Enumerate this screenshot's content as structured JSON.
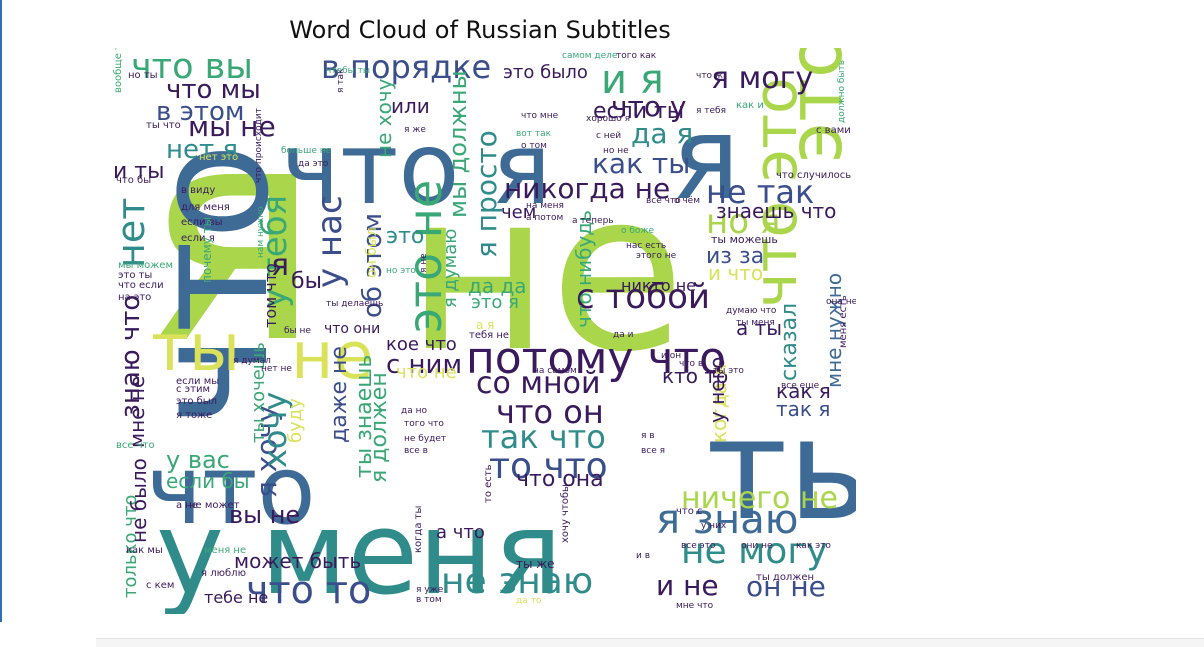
{
  "chart_data": {
    "type": "wordcloud",
    "title": "Word Cloud of Russian Subtitles",
    "colors": {
      "dark": "#3a1a5c",
      "indigo": "#3b4e8c",
      "blue": "#3e6a96",
      "teal": "#2f8c8a",
      "green": "#3aa876",
      "lime": "#a9d64b",
      "yellow": "#d9e25a"
    },
    "words": [
      {
        "text": "я",
        "c": "lime"
      },
      {
        "text": "не",
        "c": "lime"
      },
      {
        "text": "что",
        "c": "blue"
      },
      {
        "text": "ты",
        "c": "blue"
      },
      {
        "text": "у меня",
        "c": "teal"
      },
      {
        "text": "что я",
        "c": "blue"
      },
      {
        "text": "я",
        "c": "blue"
      },
      {
        "text": "что",
        "c": "blue"
      },
      {
        "text": "это",
        "c": "lime"
      },
      {
        "text": "что это",
        "c": "lime"
      },
      {
        "text": "ты",
        "c": "yellow"
      },
      {
        "text": "не",
        "c": "yellow"
      },
      {
        "text": "что вы",
        "c": "green"
      },
      {
        "text": "в порядке",
        "c": "indigo"
      },
      {
        "text": "и я",
        "c": "green"
      },
      {
        "text": "я могу",
        "c": "dark"
      },
      {
        "text": "что мы",
        "c": "dark"
      },
      {
        "text": "что у",
        "c": "dark"
      },
      {
        "text": "в этом",
        "c": "indigo"
      },
      {
        "text": "если ты",
        "c": "dark"
      },
      {
        "text": "мы не",
        "c": "dark"
      },
      {
        "text": "да я",
        "c": "teal"
      },
      {
        "text": "нет я",
        "c": "teal"
      },
      {
        "text": "как ты",
        "c": "indigo"
      },
      {
        "text": "нет",
        "c": "teal"
      },
      {
        "text": "и ты",
        "c": "dark"
      },
      {
        "text": "никогда не",
        "c": "dark"
      },
      {
        "text": "не так",
        "c": "indigo"
      },
      {
        "text": "у тебя",
        "c": "green"
      },
      {
        "text": "у нас",
        "c": "indigo"
      },
      {
        "text": "но я",
        "c": "lime"
      },
      {
        "text": "знаешь что",
        "c": "dark"
      },
      {
        "text": "это не",
        "c": "green"
      },
      {
        "text": "об этом",
        "c": "indigo"
      },
      {
        "text": "я просто",
        "c": "teal"
      },
      {
        "text": "мы должны",
        "c": "green"
      },
      {
        "text": "не хочу",
        "c": "green"
      },
      {
        "text": "или",
        "c": "dark"
      },
      {
        "text": "это было",
        "c": "dark"
      },
      {
        "text": "с тобой",
        "c": "dark"
      },
      {
        "text": "из за",
        "c": "indigo"
      },
      {
        "text": "и что",
        "c": "yellow"
      },
      {
        "text": "никто не",
        "c": "dark"
      },
      {
        "text": "потому что",
        "c": "dark"
      },
      {
        "text": "со мной",
        "c": "dark"
      },
      {
        "text": "что он",
        "c": "dark"
      },
      {
        "text": "так что",
        "c": "teal"
      },
      {
        "text": "то что",
        "c": "indigo"
      },
      {
        "text": "что она",
        "c": "dark"
      },
      {
        "text": "кто то",
        "c": "dark"
      },
      {
        "text": "с ним",
        "c": "dark"
      },
      {
        "text": "кое что",
        "c": "dark"
      },
      {
        "text": "что не",
        "c": "yellow"
      },
      {
        "text": "сказал",
        "c": "teal"
      },
      {
        "text": "мне нужно",
        "c": "blue"
      },
      {
        "text": "как я",
        "c": "dark"
      },
      {
        "text": "так я",
        "c": "indigo"
      },
      {
        "text": "когда я",
        "c": "yellow"
      },
      {
        "text": "у него",
        "c": "dark"
      },
      {
        "text": "ничего не",
        "c": "lime"
      },
      {
        "text": "я знаю",
        "c": "blue"
      },
      {
        "text": "не могу",
        "c": "teal"
      },
      {
        "text": "не знаю",
        "c": "teal"
      },
      {
        "text": "и не",
        "c": "dark"
      },
      {
        "text": "он не",
        "c": "indigo"
      },
      {
        "text": "что то",
        "c": "indigo"
      },
      {
        "text": "вы не",
        "c": "dark"
      },
      {
        "text": "может быть",
        "c": "dark"
      },
      {
        "text": "знаю что",
        "c": "dark"
      },
      {
        "text": "мне не",
        "c": "dark"
      },
      {
        "text": "у вас",
        "c": "green"
      },
      {
        "text": "если бы",
        "c": "green"
      },
      {
        "text": "я хочу",
        "c": "indigo"
      },
      {
        "text": "хочу",
        "c": "teal"
      },
      {
        "text": "ты хочешь",
        "c": "green"
      },
      {
        "text": "буду",
        "c": "yellow"
      },
      {
        "text": "даже не",
        "c": "indigo"
      },
      {
        "text": "ты знаешь",
        "c": "green"
      },
      {
        "text": "я должен",
        "c": "green"
      },
      {
        "text": "только что",
        "c": "green"
      },
      {
        "text": "не было",
        "c": "dark"
      },
      {
        "text": "тебе не",
        "c": "dark"
      },
      {
        "text": "да да",
        "c": "green"
      },
      {
        "text": "это я",
        "c": "green"
      },
      {
        "text": "что нибудь",
        "c": "green"
      },
      {
        "text": "чем",
        "c": "dark"
      },
      {
        "text": "я думаю",
        "c": "green"
      },
      {
        "text": "бы",
        "c": "dark"
      },
      {
        "text": "я",
        "c": "dark"
      },
      {
        "text": "а ты",
        "c": "dark"
      },
      {
        "text": "а что",
        "c": "dark"
      },
      {
        "text": "том что",
        "c": "dark"
      },
      {
        "text": "что они",
        "c": "dark"
      },
      {
        "text": "он был",
        "c": "yellow"
      },
      {
        "text": "это",
        "c": "teal"
      },
      {
        "text": "но ты",
        "c": "dark"
      },
      {
        "text": "вообще то",
        "c": "green"
      },
      {
        "text": "ты что",
        "c": "dark"
      },
      {
        "text": "нет это",
        "c": "yellow"
      },
      {
        "text": "что бы",
        "c": "dark"
      },
      {
        "text": "в виду",
        "c": "dark"
      },
      {
        "text": "для меня",
        "c": "dark"
      },
      {
        "text": "если вы",
        "c": "dark"
      },
      {
        "text": "если я",
        "c": "dark"
      },
      {
        "text": "мы можем",
        "c": "green"
      },
      {
        "text": "это ты",
        "c": "dark"
      },
      {
        "text": "что если",
        "c": "dark"
      },
      {
        "text": "на это",
        "c": "dark"
      },
      {
        "text": "почему ты",
        "c": "green"
      },
      {
        "text": "если мы",
        "c": "dark"
      },
      {
        "text": "с этим",
        "c": "dark"
      },
      {
        "text": "это был",
        "c": "dark"
      },
      {
        "text": "я тоже",
        "c": "dark"
      },
      {
        "text": "все что",
        "c": "green"
      },
      {
        "text": "а не",
        "c": "dark"
      },
      {
        "text": "не может",
        "c": "dark"
      },
      {
        "text": "как мы",
        "c": "dark"
      },
      {
        "text": "меня не",
        "c": "green"
      },
      {
        "text": "я люблю",
        "c": "dark"
      },
      {
        "text": "с кем",
        "c": "dark"
      },
      {
        "text": "чтобы ты",
        "c": "green"
      },
      {
        "text": "я так",
        "c": "dark"
      },
      {
        "text": "я же",
        "c": "dark"
      },
      {
        "text": "больше не",
        "c": "green"
      },
      {
        "text": "да это",
        "c": "dark"
      },
      {
        "text": "что происходит",
        "c": "dark"
      },
      {
        "text": "нам нужно",
        "c": "green"
      },
      {
        "text": "но это",
        "c": "green"
      },
      {
        "text": "ты делаешь",
        "c": "dark"
      },
      {
        "text": "я думал",
        "c": "dark"
      },
      {
        "text": "нет не",
        "c": "dark"
      },
      {
        "text": "бы не",
        "c": "dark"
      },
      {
        "text": "что мне",
        "c": "dark"
      },
      {
        "text": "вот так",
        "c": "green"
      },
      {
        "text": "о том",
        "c": "dark"
      },
      {
        "text": "хорошо я",
        "c": "dark"
      },
      {
        "text": "с ней",
        "c": "dark"
      },
      {
        "text": "но не",
        "c": "dark"
      },
      {
        "text": "самом деле",
        "c": "green"
      },
      {
        "text": "того как",
        "c": "dark"
      },
      {
        "text": "что ж",
        "c": "dark"
      },
      {
        "text": "как и",
        "c": "green"
      },
      {
        "text": "с вами",
        "c": "dark"
      },
      {
        "text": "я тебя",
        "c": "dark"
      },
      {
        "text": "что случилось",
        "c": "dark"
      },
      {
        "text": "должно быть",
        "c": "green"
      },
      {
        "text": "ты можешь",
        "c": "dark"
      },
      {
        "text": "нас есть",
        "c": "dark"
      },
      {
        "text": "этого не",
        "c": "dark"
      },
      {
        "text": "о боже",
        "c": "green"
      },
      {
        "text": "а теперь",
        "c": "dark"
      },
      {
        "text": "о чём",
        "c": "dark"
      },
      {
        "text": "все что",
        "c": "dark"
      },
      {
        "text": "на меня",
        "c": "dark"
      },
      {
        "text": "а потом",
        "c": "dark"
      },
      {
        "text": "думаю что",
        "c": "dark"
      },
      {
        "text": "ты меня",
        "c": "dark"
      },
      {
        "text": "она не",
        "c": "dark"
      },
      {
        "text": "меня есть",
        "c": "dark"
      },
      {
        "text": "и он",
        "c": "dark"
      },
      {
        "text": "что в",
        "c": "dark"
      },
      {
        "text": "ты это",
        "c": "dark"
      },
      {
        "text": "все еще",
        "c": "dark"
      },
      {
        "text": "да но",
        "c": "dark"
      },
      {
        "text": "того что",
        "c": "dark"
      },
      {
        "text": "не будет",
        "c": "dark"
      },
      {
        "text": "все в",
        "c": "dark"
      },
      {
        "text": "на самом",
        "c": "dark"
      },
      {
        "text": "тебя не",
        "c": "dark"
      },
      {
        "text": "а я",
        "c": "yellow"
      },
      {
        "text": "да и",
        "c": "dark"
      },
      {
        "text": "то есть",
        "c": "dark"
      },
      {
        "text": "когда ты",
        "c": "dark"
      },
      {
        "text": "хочу чтобы",
        "c": "dark"
      },
      {
        "text": "ты же",
        "c": "dark"
      },
      {
        "text": "и в",
        "c": "dark"
      },
      {
        "text": "я уже",
        "c": "dark"
      },
      {
        "text": "в том",
        "c": "dark"
      },
      {
        "text": "да то",
        "c": "yellow"
      },
      {
        "text": "что с",
        "c": "dark"
      },
      {
        "text": "у них",
        "c": "dark"
      },
      {
        "text": "все это",
        "c": "dark"
      },
      {
        "text": "они не",
        "c": "dark"
      },
      {
        "text": "как это",
        "c": "dark"
      },
      {
        "text": "ты должен",
        "c": "dark"
      },
      {
        "text": "мне что",
        "c": "dark"
      },
      {
        "text": "я не",
        "c": "dark"
      },
      {
        "text": "я в",
        "c": "dark"
      },
      {
        "text": "все я",
        "c": "dark"
      }
    ]
  }
}
